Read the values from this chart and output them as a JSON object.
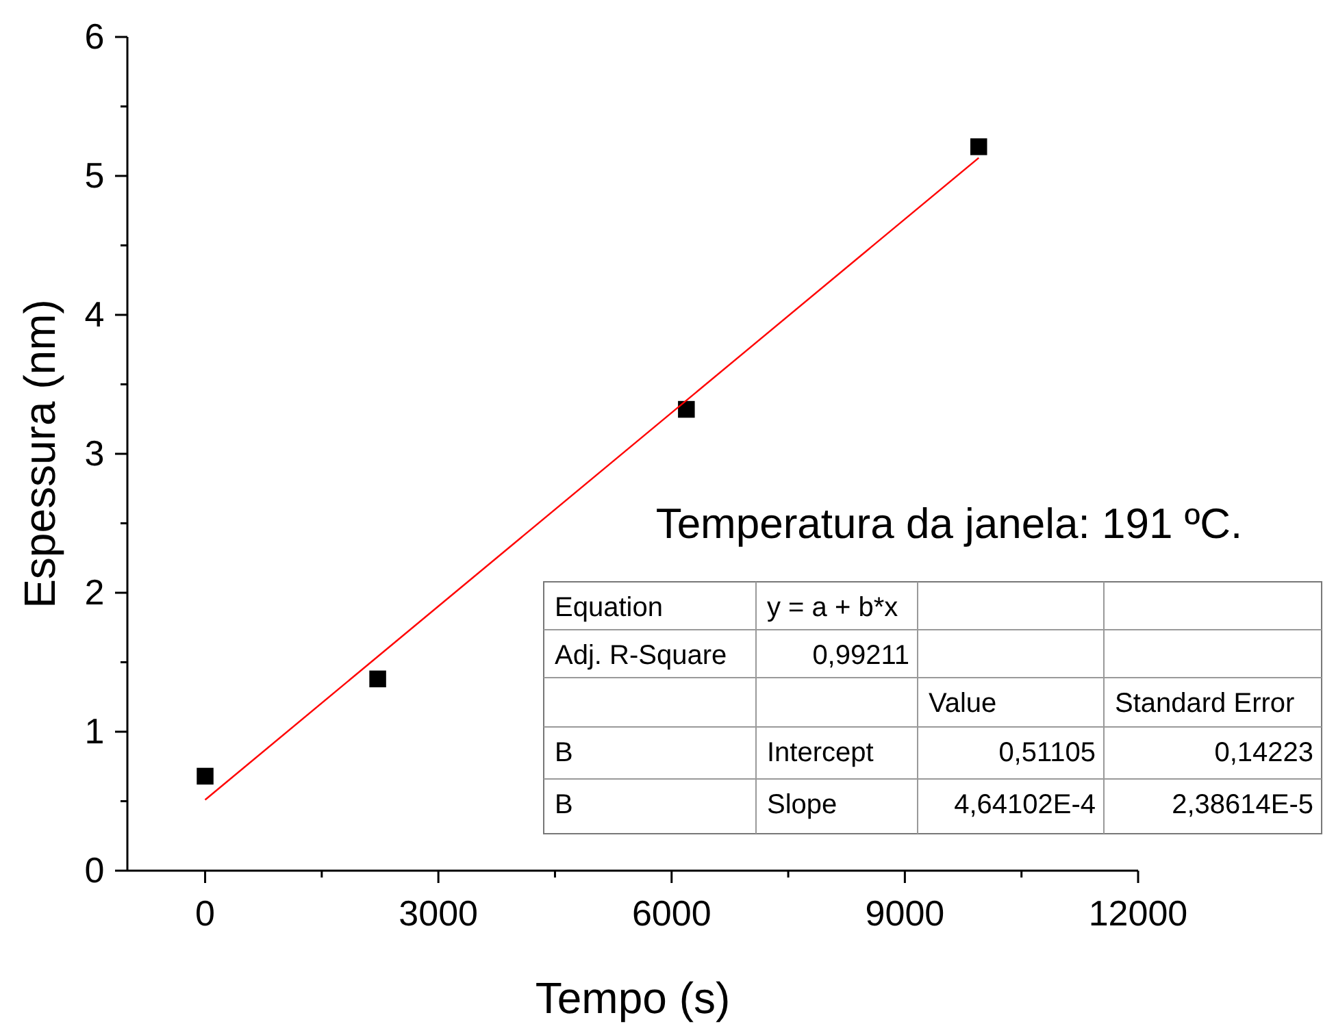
{
  "chart_data": {
    "type": "scatter",
    "xlabel": "Tempo (s)",
    "ylabel": "Espessura (nm)",
    "xlim": [
      -1000,
      12000
    ],
    "ylim": [
      0,
      6
    ],
    "xticks": [
      0,
      {
        "value": 1500,
        "label": null
      },
      3000,
      {
        "value": 4500,
        "label": null
      },
      6000,
      {
        "value": 7500,
        "label": null
      },
      9000,
      {
        "value": 10500,
        "label": null
      },
      12000
    ],
    "yticks": [
      0,
      {
        "value": 0.5,
        "label": null
      },
      1,
      {
        "value": 1.5,
        "label": null
      },
      2,
      {
        "value": 2.5,
        "label": null
      },
      3,
      {
        "value": 3.5,
        "label": null
      },
      4,
      {
        "value": 4.5,
        "label": null
      },
      5,
      {
        "value": 5.5,
        "label": null
      },
      6
    ],
    "grid": false,
    "marker": "square",
    "series": [
      {
        "color": "#000000",
        "x": [
          0,
          2220,
          6190,
          9950
        ],
        "values": [
          0.68,
          1.38,
          3.32,
          5.21
        ]
      },
      {
        "type": "line",
        "color": "#ff0000",
        "marker": "none",
        "line_style": "solid",
        "x": [
          0,
          9950
        ],
        "values": [
          0.51,
          5.13
        ]
      }
    ],
    "annotations": [
      "Temperatura da janela: 191 ºC.",
      "Equation",
      "y = a + b*x",
      "Adj. R-Square",
      "0,99211",
      "Value",
      "Standard Error",
      "B",
      "Intercept",
      "0,51105",
      "0,14223",
      "B",
      "Slope",
      "4,64102E-4",
      "2,38614E-5"
    ]
  }
}
